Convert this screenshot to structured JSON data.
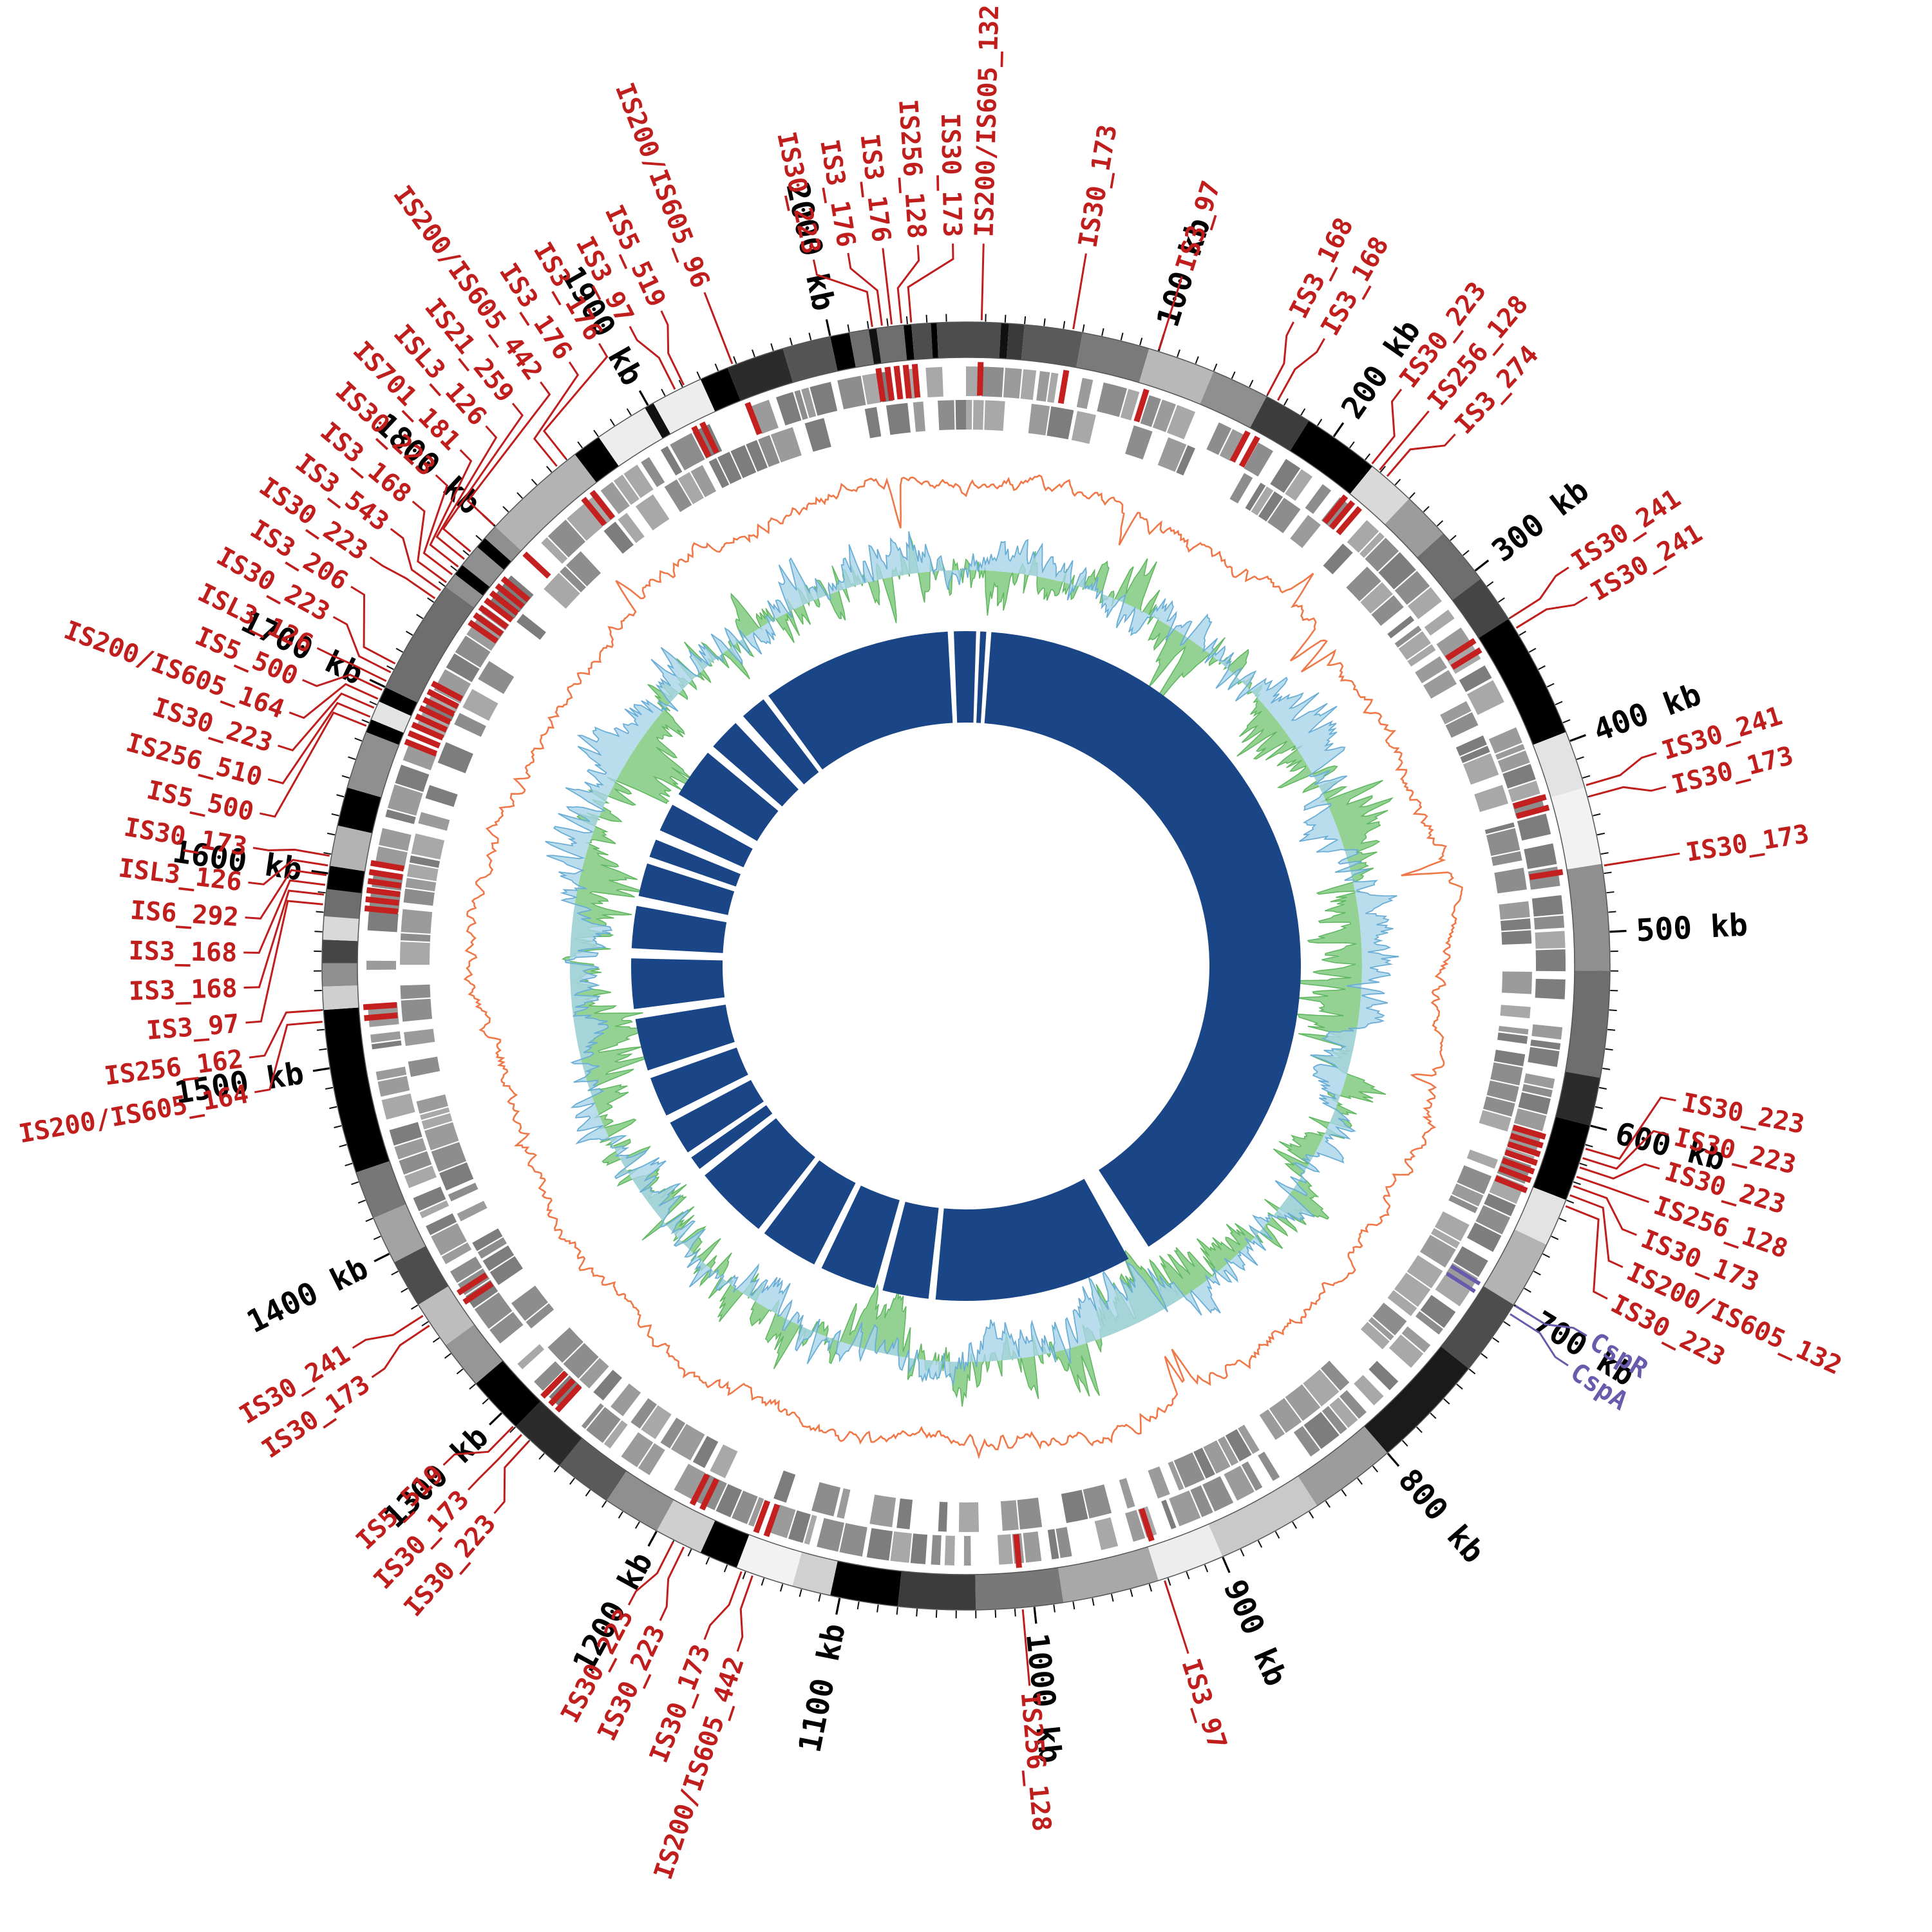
{
  "figure": {
    "background": "#ffffff"
  },
  "chart_data": {
    "type": "circos",
    "genome_length_kb": 2070,
    "axis": {
      "major_tick_kb": 100,
      "minor_tick_kb": 10,
      "tick_labels": [
        "100 kb",
        "200 kb",
        "300 kb",
        "400 kb",
        "500 kb",
        "600 kb",
        "700 kb",
        "800 kb",
        "900 kb",
        "1000 kb",
        "1100 kb",
        "1200 kb",
        "1300 kb",
        "1400 kb",
        "1500 kb",
        "1600 kb",
        "1700 kb",
        "1800 kb",
        "1900 kb",
        "2000 kb"
      ]
    },
    "colors": {
      "is_label": "#c01d1d",
      "special_label": "#6a5aab",
      "axis_label": "#000000",
      "tick": "#111111",
      "ring_border": "#555555",
      "gene_tile": "#9a9a9a",
      "gc_skew_line": "#f07848",
      "gc_green_fill": "#8ed08e",
      "gc_green_line": "#62b862",
      "gc_blue_fill": "#a9d4ea",
      "gc_blue_line": "#6aaed6",
      "inner_ring": "#1a4688",
      "red_tick": "#c42020"
    },
    "layout": {
      "center": 1500,
      "r_ideogram_inner": 945,
      "r_ideogram_outer": 1000,
      "r_axis_label": 1042,
      "r_is_label": 1132,
      "r_red_tick_inner": 886,
      "r_red_tick_outer": 938
    },
    "ideogram_segments": [
      [
        0,
        18,
        "#4d4d4d"
      ],
      [
        18,
        22,
        "#111111"
      ],
      [
        22,
        30,
        "#3a3a3a"
      ],
      [
        30,
        60,
        "#5a5a5a"
      ],
      [
        60,
        95,
        "#7a7a7a"
      ],
      [
        95,
        130,
        "#b8b8b8"
      ],
      [
        130,
        160,
        "#8f8f8f"
      ],
      [
        160,
        185,
        "#3c3c3c"
      ],
      [
        185,
        225,
        "#000000"
      ],
      [
        225,
        250,
        "#d9d9d9"
      ],
      [
        250,
        275,
        "#9c9c9c"
      ],
      [
        275,
        305,
        "#6e6e6e"
      ],
      [
        305,
        330,
        "#454545"
      ],
      [
        330,
        395,
        "#000000"
      ],
      [
        395,
        425,
        "#e3e3e3"
      ],
      [
        425,
        465,
        "#f2f2f2"
      ],
      [
        465,
        520,
        "#8f8f8f"
      ],
      [
        520,
        575,
        "#6e6e6e"
      ],
      [
        575,
        600,
        "#2b2b2b"
      ],
      [
        600,
        640,
        "#000000"
      ],
      [
        640,
        665,
        "#e3e3e3"
      ],
      [
        665,
        700,
        "#b3b3b3"
      ],
      [
        700,
        740,
        "#4d4d4d"
      ],
      [
        740,
        800,
        "#1a1a1a"
      ],
      [
        800,
        845,
        "#9c9c9c"
      ],
      [
        845,
        900,
        "#c9c9c9"
      ],
      [
        900,
        935,
        "#ededed"
      ],
      [
        935,
        985,
        "#a8a8a8"
      ],
      [
        985,
        1030,
        "#787878"
      ],
      [
        1030,
        1070,
        "#3c3c3c"
      ],
      [
        1070,
        1105,
        "#000000"
      ],
      [
        1105,
        1125,
        "#d0d0d0"
      ],
      [
        1125,
        1155,
        "#f2f2f2"
      ],
      [
        1155,
        1175,
        "#000000"
      ],
      [
        1175,
        1200,
        "#cfcfcf"
      ],
      [
        1200,
        1230,
        "#8f8f8f"
      ],
      [
        1230,
        1260,
        "#5a5a5a"
      ],
      [
        1260,
        1290,
        "#2b2b2b"
      ],
      [
        1290,
        1320,
        "#000000"
      ],
      [
        1320,
        1345,
        "#969696"
      ],
      [
        1345,
        1370,
        "#bdbdbd"
      ],
      [
        1370,
        1395,
        "#4d4d4d"
      ],
      [
        1395,
        1420,
        "#a3a3a3"
      ],
      [
        1420,
        1445,
        "#777777"
      ],
      [
        1445,
        1530,
        "#000000"
      ],
      [
        1530,
        1542,
        "#cfcfcf"
      ],
      [
        1542,
        1554,
        "#8f8f8f"
      ],
      [
        1554,
        1566,
        "#454545"
      ],
      [
        1566,
        1578,
        "#d9d9d9"
      ],
      [
        1578,
        1592,
        "#6e6e6e"
      ],
      [
        1592,
        1604,
        "#000000"
      ],
      [
        1604,
        1625,
        "#b3b3b3"
      ],
      [
        1625,
        1645,
        "#000000"
      ],
      [
        1645,
        1675,
        "#8f8f8f"
      ],
      [
        1675,
        1682,
        "#000000"
      ],
      [
        1682,
        1692,
        "#e3e3e3"
      ],
      [
        1692,
        1700,
        "#000000"
      ],
      [
        1700,
        1760,
        "#6e6e6e"
      ],
      [
        1760,
        1768,
        "#8f8f8f"
      ],
      [
        1768,
        1774,
        "#000000"
      ],
      [
        1774,
        1786,
        "#8f8f8f"
      ],
      [
        1786,
        1792,
        "#000000"
      ],
      [
        1792,
        1800,
        "#8f8f8f"
      ],
      [
        1800,
        1855,
        "#b3b3b3"
      ],
      [
        1855,
        1870,
        "#000000"
      ],
      [
        1870,
        1898,
        "#ededed"
      ],
      [
        1898,
        1903,
        "#111111"
      ],
      [
        1903,
        1930,
        "#ededed"
      ],
      [
        1930,
        1945,
        "#000000"
      ],
      [
        1945,
        1975,
        "#2b2b2b"
      ],
      [
        1975,
        2000,
        "#555555"
      ],
      [
        2000,
        2010,
        "#000000"
      ],
      [
        2010,
        2020,
        "#6e6e6e"
      ],
      [
        2020,
        2024,
        "#111111"
      ],
      [
        2024,
        2038,
        "#6e6e6e"
      ],
      [
        2038,
        2042,
        "#000000"
      ],
      [
        2042,
        2052,
        "#4d4d4d"
      ],
      [
        2052,
        2055,
        "#000000"
      ],
      [
        2055,
        2070,
        "#4d4d4d"
      ]
    ],
    "is_elements": [
      [
        "IS200/IS605_132",
        8
      ],
      [
        "IS30_173",
        55
      ],
      [
        "IS3_97",
        100
      ],
      [
        "IS3_168",
        160
      ],
      [
        "IS3_168",
        166
      ],
      [
        "IS30_223",
        224
      ],
      [
        "IS256_128",
        229
      ],
      [
        "IS3_274",
        234
      ],
      [
        "IS30_241",
        330
      ],
      [
        "IS30_241",
        336
      ],
      [
        "IS30_241",
        424
      ],
      [
        "IS30_173",
        430
      ],
      [
        "IS30_173",
        466
      ],
      [
        "IS30_223",
        612
      ],
      [
        "IS30_223",
        617
      ],
      [
        "IS30_223",
        622
      ],
      [
        "IS256_128",
        627
      ],
      [
        "IS30_173",
        632
      ],
      [
        "IS200/IS605_132",
        637
      ],
      [
        "IS30_223",
        643
      ],
      [
        "IS3_97",
        932
      ],
      [
        "IS256_128",
        1006
      ],
      [
        "IS200/IS605_442",
        1146
      ],
      [
        "IS30_173",
        1152
      ],
      [
        "IS30_223",
        1184
      ],
      [
        "IS30_223",
        1190
      ],
      [
        "IS30_223",
        1280
      ],
      [
        "IS30_173",
        1285
      ],
      [
        "IS5_519",
        1291
      ],
      [
        "IS30_173",
        1358
      ],
      [
        "IS30_241",
        1364
      ],
      [
        "IS200/IS605_164",
        1524
      ],
      [
        "IS256_162",
        1530
      ],
      [
        "IS3_97",
        1584
      ],
      [
        "IS3_168",
        1589
      ],
      [
        "IS3_168",
        1594
      ],
      [
        "IS6_292",
        1599
      ],
      [
        "ISL3_126",
        1604
      ],
      [
        "IS30_173",
        1609
      ],
      [
        "IS5_500",
        1678
      ],
      [
        "IS256_510",
        1683
      ],
      [
        "IS30_223",
        1688
      ],
      [
        "IS200/IS605_164",
        1693
      ],
      [
        "IS5_500",
        1698
      ],
      [
        "ISL3_126",
        1703
      ],
      [
        "IS30_223",
        1708
      ],
      [
        "IS3_206",
        1713
      ],
      [
        "IS30_223",
        1752
      ],
      [
        "IS3_543",
        1757
      ],
      [
        "IS3_168",
        1762
      ],
      [
        "IS30_223",
        1767
      ],
      [
        "IS701_181",
        1772
      ],
      [
        "ISL3_126",
        1777
      ],
      [
        "IS21_259",
        1782
      ],
      [
        "IS200/IS605_442",
        1800
      ],
      [
        "IS3_176",
        1844
      ],
      [
        "IS3_176",
        1850
      ],
      [
        "IS3_97",
        1916
      ],
      [
        "IS5_519",
        1921
      ],
      [
        "IS200/IS605_96",
        1948
      ],
      [
        "IS30_223",
        2022
      ],
      [
        "IS3_176",
        2027
      ],
      [
        "IS3_176",
        2032
      ],
      [
        "IS256_128",
        2037
      ],
      [
        "IS30_173",
        2042
      ]
    ],
    "special_elements": [
      {
        "label": "CspR",
        "kb": 700
      },
      {
        "label": "CspA",
        "kb": 705
      }
    ],
    "tracks": {
      "gene_tiles_outer": {
        "r_inner": 885,
        "r_outer": 931,
        "seed": 11,
        "density": 0.78
      },
      "gene_tiles_inner": {
        "r_inner": 833,
        "r_outer": 879,
        "seed": 23,
        "density": 0.74
      },
      "gc_skew": {
        "r_base": 750,
        "amplitude": 30,
        "seed": 7,
        "points": 1440
      },
      "gc_content": {
        "r_base": 615,
        "amplitude_green": 120,
        "amplitude_blue": 95,
        "seed_green": 5,
        "seed_blue": 9,
        "points": 1440
      },
      "inner_ring": {
        "r_inner": 378,
        "r_outer": 520
      }
    },
    "inner_ring_segments_kb": [
      [
        0,
        10
      ],
      [
        14,
        20
      ],
      [
        25,
        845
      ],
      [
        868,
        1065
      ],
      [
        1072,
        1118
      ],
      [
        1126,
        1182
      ],
      [
        1190,
        1248
      ],
      [
        1255,
        1330
      ],
      [
        1338,
        1352
      ],
      [
        1358,
        1392
      ],
      [
        1400,
        1440
      ],
      [
        1448,
        1500
      ],
      [
        1510,
        1560
      ],
      [
        1570,
        1612
      ],
      [
        1622,
        1655
      ],
      [
        1662,
        1680
      ],
      [
        1690,
        1718
      ],
      [
        1730,
        1780
      ],
      [
        1788,
        1820
      ],
      [
        1830,
        1856
      ],
      [
        1862,
        2052
      ],
      [
        2058,
        2070
      ]
    ]
  }
}
